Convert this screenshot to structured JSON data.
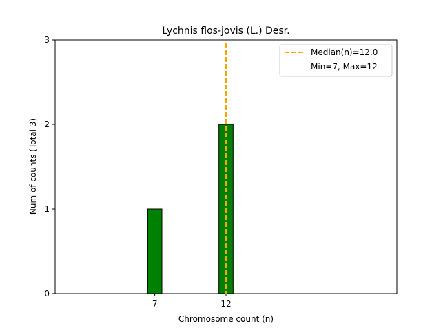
{
  "chart_data": {
    "type": "bar",
    "title": "Lychnis flos-jovis (L.) Desr.",
    "xlabel": "Chromosome count (n)",
    "ylabel": "Num of counts     (Total 3)",
    "x_ticks": [
      7,
      12
    ],
    "y_ticks": [
      0,
      1,
      2,
      3
    ],
    "xlim": [
      0,
      24
    ],
    "ylim": [
      0,
      3
    ],
    "bars": [
      {
        "x": 7,
        "value": 1
      },
      {
        "x": 12,
        "value": 2
      }
    ],
    "bar_width": 1,
    "bar_color": "#008000",
    "bar_edge_color": "#000000",
    "median": 12.0,
    "median_color": "#FFA500",
    "legend": {
      "position": "top-right",
      "entries": [
        "Median(n)=12.0",
        "Min=7, Max=12"
      ]
    }
  }
}
